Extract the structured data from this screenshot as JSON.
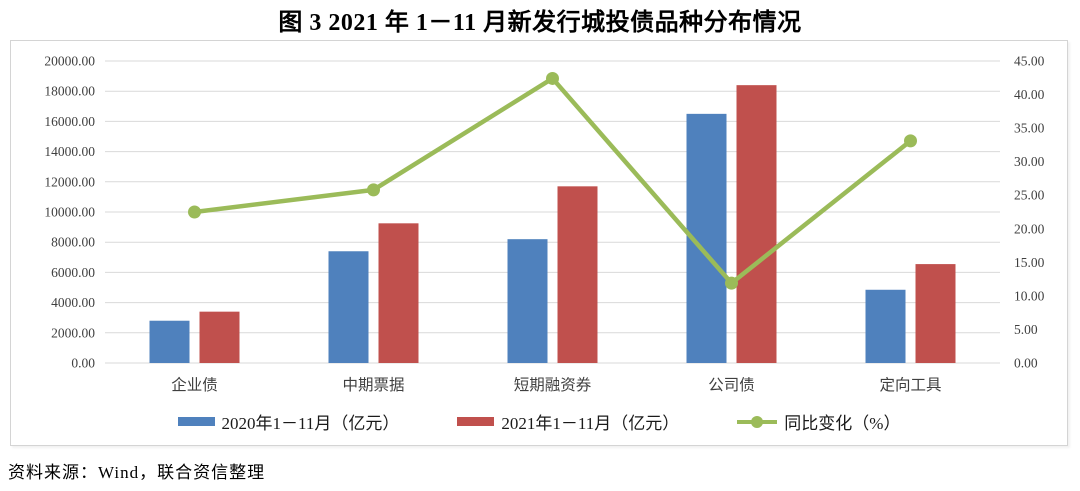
{
  "title": "图 3   2021 年 1－11 月新发行城投债品种分布情况",
  "source_note": "资料来源：Wind，联合资信整理",
  "colors": {
    "bar_2020": "#4F81BD",
    "bar_2021": "#C0504D",
    "line_yoy": "#9BBB59",
    "grid": "#D9D9D9",
    "axis_text": "#3F3F3F",
    "frame_border": "#D4D4D4"
  },
  "legend": {
    "items": [
      {
        "icon": "blue-bar-swatch",
        "label": "2020年1－11月（亿元）"
      },
      {
        "icon": "red-bar-swatch",
        "label": "2021年1－11月（亿元）"
      },
      {
        "icon": "green-line-dot-swatch",
        "label": "同比变化（%）"
      }
    ]
  },
  "chart_data": {
    "type": "bar",
    "subtype": "grouped-bars-with-line",
    "title": "图 3   2021 年 1－11 月新发行城投债品种分布情况",
    "categories": [
      "企业债",
      "中期票据",
      "短期融资券",
      "公司债",
      "定向工具"
    ],
    "series": [
      {
        "name": "2020年1－11月（亿元）",
        "type": "bar",
        "axis": "left",
        "color": "#4F81BD",
        "values": [
          2800,
          7400,
          8200,
          16500,
          4850
        ]
      },
      {
        "name": "2021年1－11月（亿元）",
        "type": "bar",
        "axis": "left",
        "color": "#C0504D",
        "values": [
          3400,
          9250,
          11700,
          18400,
          6550
        ]
      },
      {
        "name": "同比变化（%）",
        "type": "line",
        "axis": "right",
        "color": "#9BBB59",
        "values": [
          22.5,
          25.8,
          42.4,
          11.9,
          33.1
        ]
      }
    ],
    "left_axis": {
      "min": 0,
      "max": 20000,
      "step": 2000,
      "tick_format": "0.00",
      "tick_labels": [
        "0.00",
        "2000.00",
        "4000.00",
        "6000.00",
        "8000.00",
        "10000.00",
        "12000.00",
        "14000.00",
        "16000.00",
        "18000.00",
        "20000.00"
      ]
    },
    "right_axis": {
      "min": 0,
      "max": 45,
      "step": 5,
      "tick_format": "0.00",
      "tick_labels": [
        "0.00",
        "5.00",
        "10.00",
        "15.00",
        "20.00",
        "25.00",
        "30.00",
        "35.00",
        "40.00",
        "45.00"
      ]
    },
    "grid": true,
    "legend_position": "bottom"
  }
}
